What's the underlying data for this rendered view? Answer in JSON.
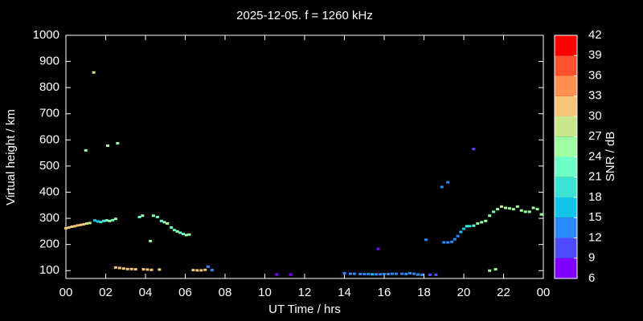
{
  "chart_data": {
    "type": "scatter",
    "title": "2025-12-05. f = 1260 kHz",
    "xlabel": "UT Time / hrs",
    "ylabel": "Virtual height / km",
    "xlim": [
      0,
      24
    ],
    "ylim": [
      70,
      1000
    ],
    "xticks": [
      {
        "value": 0,
        "label": "00"
      },
      {
        "value": 2,
        "label": "02"
      },
      {
        "value": 4,
        "label": "04"
      },
      {
        "value": 6,
        "label": "06"
      },
      {
        "value": 8,
        "label": "08"
      },
      10,
      12,
      14,
      16,
      18,
      20,
      22,
      {
        "value": 24,
        "label": "00"
      }
    ],
    "yticks": [
      100,
      200,
      300,
      400,
      500,
      600,
      700,
      800,
      900,
      1000
    ],
    "colorbar": {
      "label": "SNR / dB",
      "range": [
        6,
        42
      ],
      "ticks": [
        6,
        9,
        12,
        15,
        18,
        21,
        24,
        27,
        30,
        33,
        36,
        39,
        42
      ],
      "colors": [
        "#8000ff",
        "#4f4cff",
        "#2a8aff",
        "#12c4e8",
        "#3be3d2",
        "#6cffc6",
        "#9cffa2",
        "#c8e68a",
        "#f5c67a",
        "#ff9050",
        "#ff5030",
        "#ff0000"
      ]
    },
    "x": [
      0.0,
      0.15,
      0.3,
      0.45,
      0.6,
      0.75,
      0.9,
      1.05,
      1.2,
      1.45,
      1.6,
      1.75,
      1.9,
      2.05,
      2.2,
      2.35,
      2.5,
      1.0,
      1.4,
      2.1,
      2.6,
      3.7,
      3.85,
      4.4,
      4.6,
      4.8,
      4.95,
      5.1,
      5.3,
      5.45,
      5.6,
      5.75,
      5.9,
      6.05,
      6.2,
      4.25,
      2.5,
      2.7,
      2.9,
      3.1,
      3.3,
      3.5,
      3.9,
      4.1,
      4.3,
      4.7,
      6.4,
      6.6,
      6.8,
      7.0,
      7.15,
      7.35,
      10.6,
      11.3,
      14.0,
      14.3,
      14.5,
      14.8,
      15.0,
      15.2,
      15.4,
      15.6,
      15.8,
      16.0,
      16.2,
      16.4,
      16.6,
      16.9,
      17.1,
      17.3,
      17.5,
      17.7,
      17.9,
      18.3,
      18.6,
      15.7,
      18.1,
      18.9,
      19.2,
      20.5,
      19.0,
      19.2,
      19.4,
      19.55,
      19.7,
      19.85,
      20.0,
      20.15,
      20.3,
      20.5,
      20.7,
      20.9,
      21.1,
      21.3,
      21.5,
      21.7,
      21.9,
      22.1,
      22.3,
      22.5,
      22.7,
      22.9,
      23.1,
      23.3,
      23.5,
      23.7,
      23.9,
      21.3,
      21.6
    ],
    "y": [
      262,
      265,
      268,
      270,
      273,
      275,
      277,
      280,
      282,
      292,
      288,
      286,
      290,
      292,
      290,
      293,
      298,
      560,
      858,
      578,
      587,
      305,
      310,
      310,
      305,
      290,
      285,
      280,
      265,
      255,
      250,
      245,
      240,
      236,
      238,
      213,
      112,
      110,
      108,
      106,
      106,
      105,
      105,
      104,
      103,
      104,
      102,
      101,
      101,
      103,
      115,
      102,
      85,
      85,
      90,
      88,
      88,
      87,
      87,
      87,
      86,
      86,
      86,
      87,
      87,
      88,
      88,
      88,
      87,
      90,
      88,
      85,
      84,
      84,
      84,
      183,
      218,
      420,
      438,
      565,
      208,
      208,
      210,
      220,
      232,
      248,
      260,
      270,
      270,
      272,
      280,
      285,
      290,
      310,
      325,
      335,
      345,
      340,
      338,
      335,
      345,
      330,
      325,
      325,
      340,
      335,
      315,
      100,
      105
    ],
    "snr": [
      31,
      31,
      32,
      31,
      31,
      30,
      32,
      29,
      28,
      17,
      16,
      19,
      18,
      23,
      24,
      22,
      25,
      24,
      27,
      24,
      25,
      23,
      24,
      24,
      22,
      23,
      24,
      24,
      22,
      23,
      24,
      22,
      23,
      25,
      24,
      24,
      31,
      32,
      31,
      30,
      31,
      32,
      31,
      32,
      31,
      32,
      31,
      31,
      30,
      31,
      13,
      14,
      8,
      8,
      14,
      13,
      14,
      13,
      14,
      13,
      15,
      14,
      13,
      14,
      13,
      14,
      13,
      14,
      13,
      14,
      13,
      12,
      13,
      11,
      11,
      8,
      12,
      12,
      12,
      10,
      13,
      13,
      14,
      14,
      14,
      15,
      17,
      19,
      20,
      22,
      24,
      25,
      24,
      24,
      23,
      25,
      27,
      26,
      25,
      26,
      25,
      26,
      25,
      26,
      25,
      26,
      24,
      24,
      25
    ]
  }
}
